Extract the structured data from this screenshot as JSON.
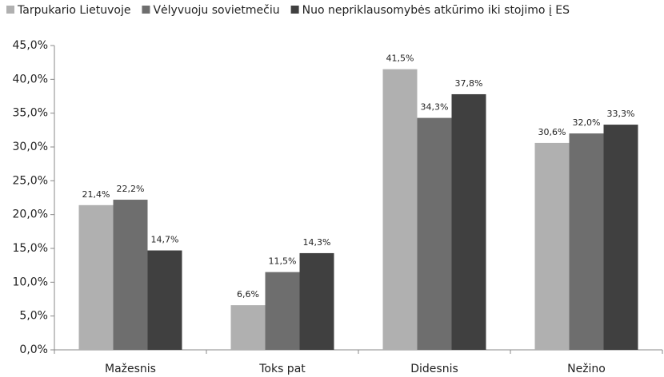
{
  "chart_data": {
    "type": "bar",
    "categories": [
      "Mažesnis",
      "Toks pat",
      "Didesnis",
      "Nežino"
    ],
    "series": [
      {
        "name": "Tarpukario Lietuvoje",
        "color": "#b0b0b0",
        "values": [
          21.4,
          6.6,
          41.5,
          30.6
        ],
        "value_labels": [
          "21,4%",
          "6,6%",
          "41,5%",
          "30,6%"
        ]
      },
      {
        "name": "Vėlyvuoju sovietmečiu",
        "color": "#6e6e6e",
        "values": [
          22.2,
          11.5,
          34.3,
          32.0
        ],
        "value_labels": [
          "22,2%",
          "11,5%",
          "34,3%",
          "32,0%"
        ]
      },
      {
        "name": "Nuo nepriklausomybės atkūrimo iki stojimo į ES",
        "color": "#404040",
        "values": [
          14.7,
          14.3,
          37.8,
          33.3
        ],
        "value_labels": [
          "14,7%",
          "14,3%",
          "37,8%",
          "33,3%"
        ]
      }
    ],
    "ylim": [
      0,
      45
    ],
    "yticks": [
      {
        "value": 0,
        "label": "0,0%"
      },
      {
        "value": 5,
        "label": "5,0%"
      },
      {
        "value": 10,
        "label": "10,0%"
      },
      {
        "value": 15,
        "label": "15,0%"
      },
      {
        "value": 20,
        "label": "20,0%"
      },
      {
        "value": 25,
        "label": "25,0%"
      },
      {
        "value": 30,
        "label": "30,0%"
      },
      {
        "value": 35,
        "label": "35,0%"
      },
      {
        "value": 40,
        "label": "40,0%"
      },
      {
        "value": 45,
        "label": "45,0%"
      }
    ],
    "grid": false,
    "legend": "top"
  }
}
